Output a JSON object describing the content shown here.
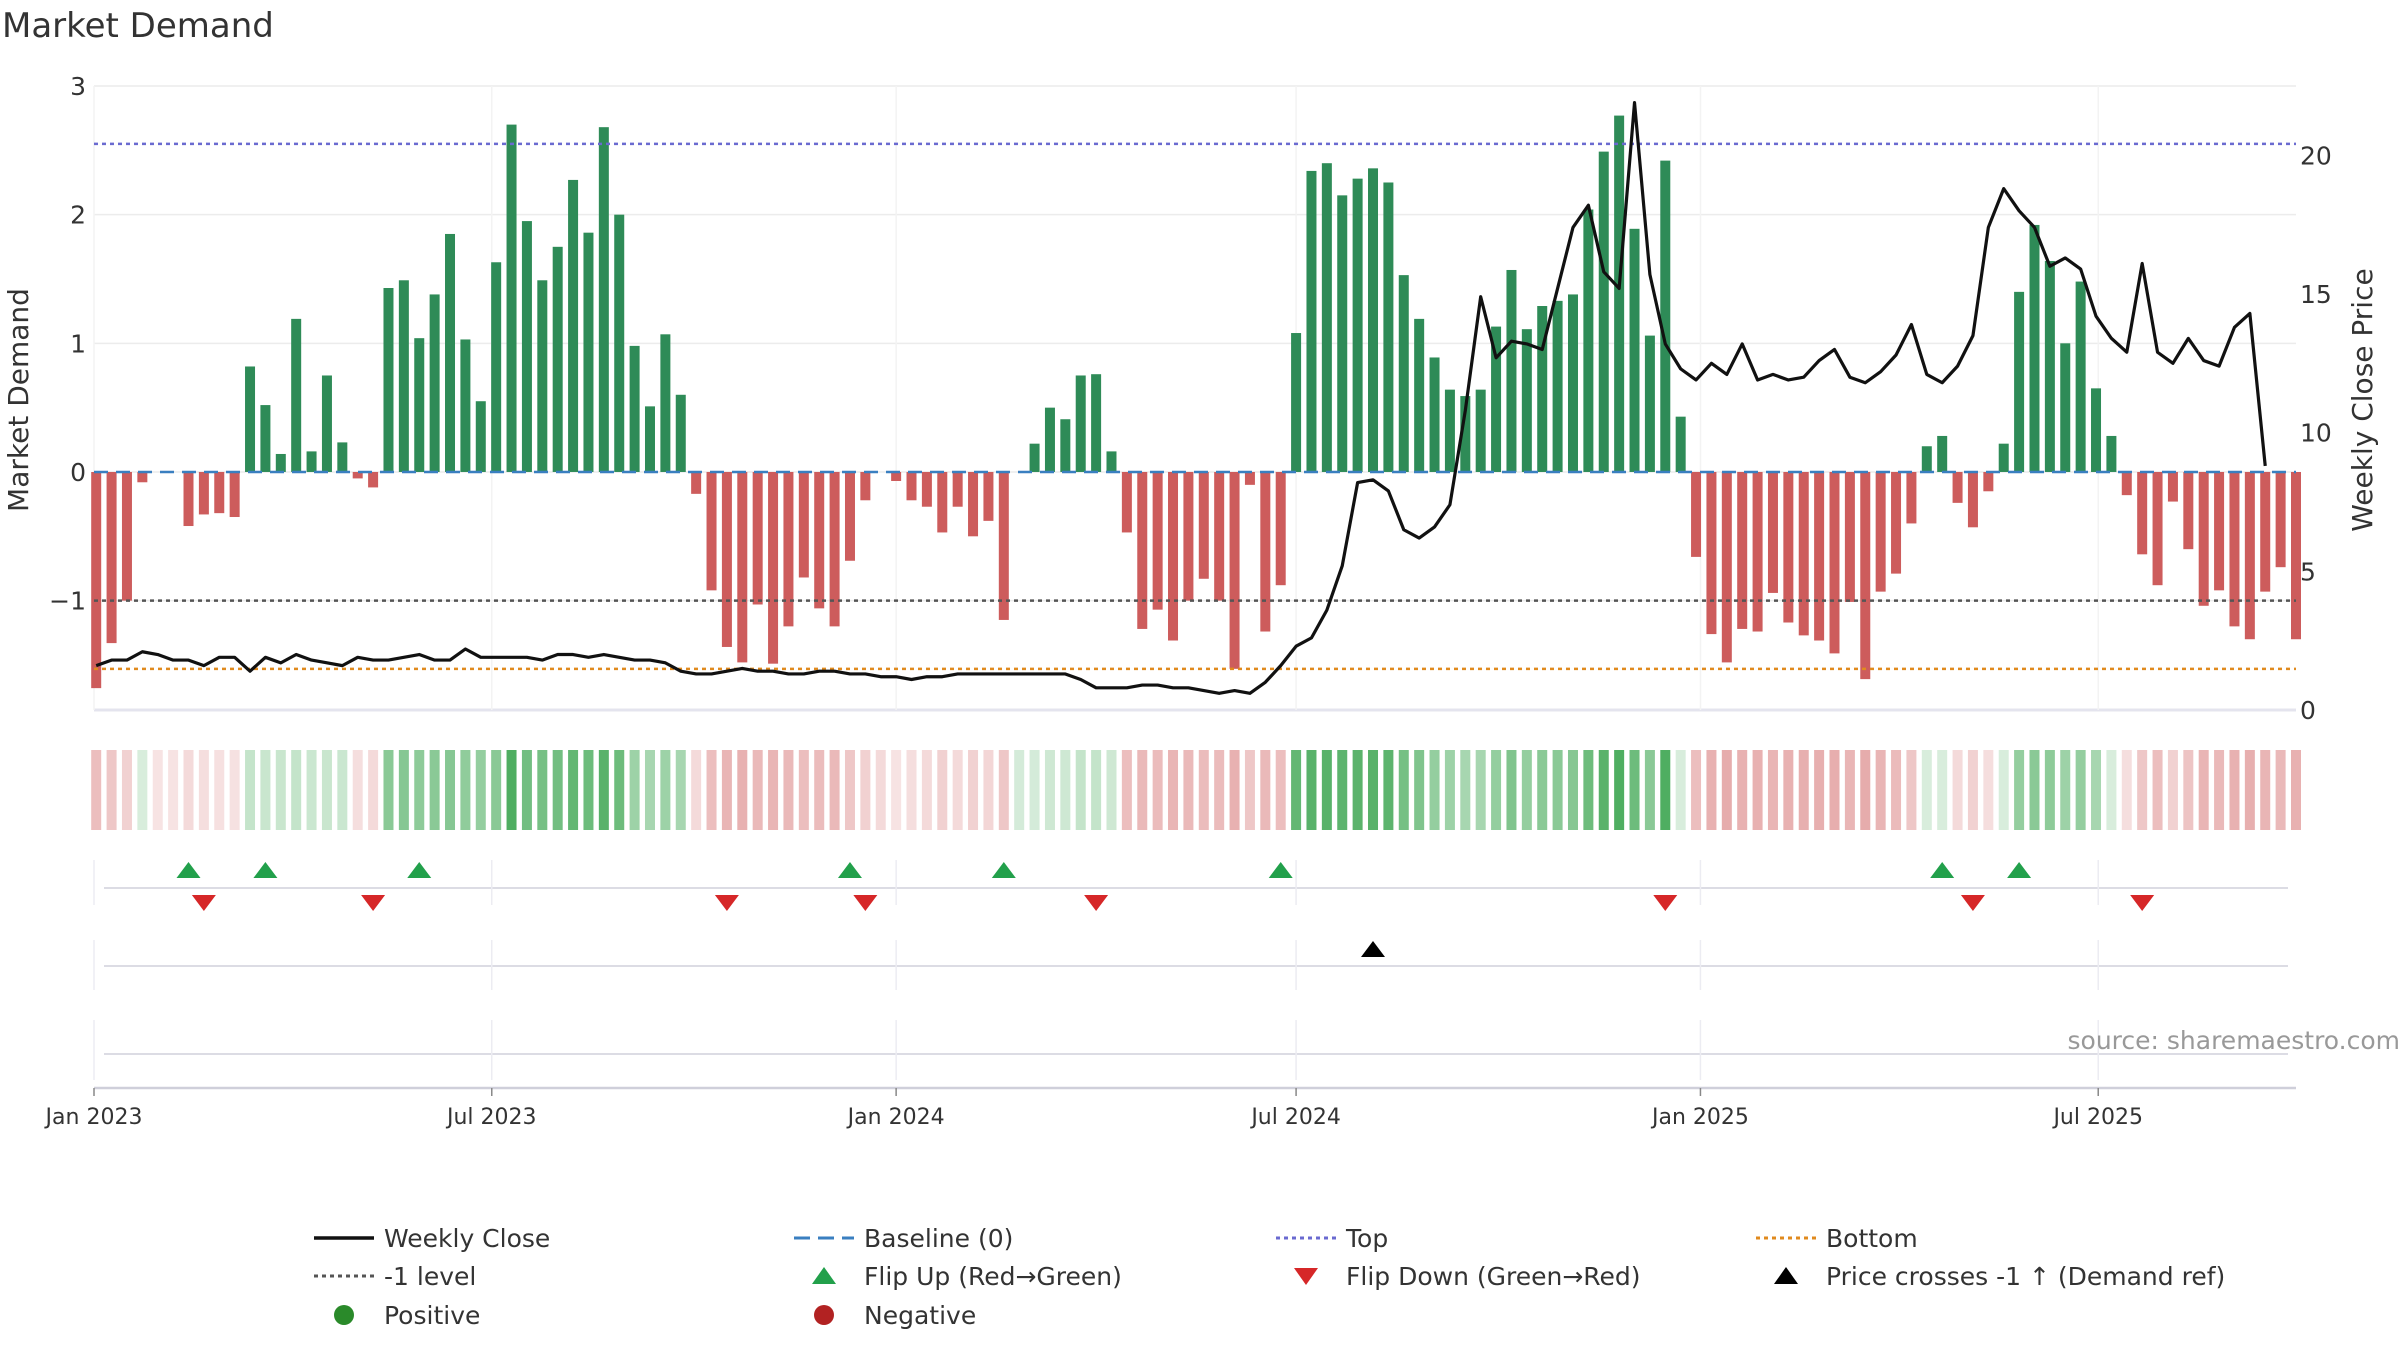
{
  "chart_data": {
    "type": "bar",
    "title": "Market Demand",
    "ylabel": "Market Demand",
    "y2label": "Weekly Close Price",
    "ylim": [
      -1.85,
      3.0
    ],
    "y2lim": [
      0,
      22.5
    ],
    "yticks": [
      3,
      2,
      1,
      0,
      -1
    ],
    "ytick_labels": [
      "3",
      "2",
      "1",
      "0",
      "−1"
    ],
    "y2ticks": [
      20,
      15,
      10,
      5,
      0
    ],
    "x_start": "2023-01-01",
    "x_end": "2025-09-29",
    "x_tick_dates": [
      "2023-01-01",
      "2023-07-01",
      "2024-01-01",
      "2024-07-01",
      "2025-01-01",
      "2025-07-01"
    ],
    "x_tick_labels": [
      "Jan 2023",
      "Jul 2023",
      "Jan 2024",
      "Jul 2024",
      "Jan 2025",
      "Jul 2025"
    ],
    "week_start": "2023-01-02",
    "reference_lines": {
      "top": 2.55,
      "minus_one": -1.0,
      "bottom": -1.53,
      "baseline": 0
    },
    "demand": [
      -1.68,
      -1.33,
      -1.0,
      -0.08,
      0,
      0,
      -0.42,
      -0.33,
      -0.32,
      -0.35,
      0.82,
      0.52,
      0.14,
      1.19,
      0.16,
      0.75,
      0.23,
      -0.05,
      -0.12,
      1.43,
      1.49,
      1.04,
      1.38,
      1.85,
      1.03,
      0.55,
      1.63,
      2.7,
      1.95,
      1.49,
      1.75,
      2.27,
      1.86,
      2.68,
      2.0,
      0.98,
      0.51,
      1.07,
      0.6,
      -0.17,
      -0.92,
      -1.36,
      -1.48,
      -1.03,
      -1.49,
      -1.2,
      -0.82,
      -1.06,
      -1.2,
      -0.69,
      -0.22,
      0,
      -0.07,
      -0.22,
      -0.27,
      -0.47,
      -0.27,
      -0.5,
      -0.38,
      -1.15,
      0,
      0.22,
      0.5,
      0.41,
      0.75,
      0.76,
      0.16,
      -0.47,
      -1.22,
      -1.07,
      -1.31,
      -1.0,
      -0.83,
      -1.0,
      -1.53,
      -0.1,
      -1.24,
      -0.88,
      1.08,
      2.34,
      2.4,
      2.15,
      2.28,
      2.36,
      2.25,
      1.53,
      1.19,
      0.89,
      0.64,
      0.59,
      0.64,
      1.13,
      1.57,
      1.11,
      1.29,
      1.33,
      1.38,
      2.04,
      2.49,
      2.77,
      1.89,
      1.06,
      2.42,
      0.43,
      -0.66,
      -1.26,
      -1.48,
      -1.22,
      -1.24,
      -0.94,
      -1.17,
      -1.27,
      -1.31,
      -1.41,
      -1.01,
      -1.61,
      -0.93,
      -0.79,
      -0.4,
      0.2,
      0.28,
      -0.24,
      -0.43,
      -0.15,
      0.22,
      1.4,
      1.92,
      1.64,
      1.0,
      1.48,
      0.65,
      0.28,
      -0.18,
      -0.64,
      -0.88,
      -0.23,
      -0.6,
      -1.04,
      -0.92,
      -1.2,
      -1.3,
      -0.93,
      -0.74,
      -1.3
    ],
    "weekly_close": [
      1.6,
      1.8,
      1.8,
      2.1,
      2.0,
      1.8,
      1.8,
      1.6,
      1.9,
      1.9,
      1.4,
      1.9,
      1.7,
      2.0,
      1.8,
      1.7,
      1.6,
      1.9,
      1.8,
      1.8,
      1.9,
      2.0,
      1.8,
      1.8,
      2.2,
      1.9,
      1.9,
      1.9,
      1.9,
      1.8,
      2.0,
      2.0,
      1.9,
      2.0,
      1.9,
      1.8,
      1.8,
      1.7,
      1.4,
      1.3,
      1.3,
      1.4,
      1.5,
      1.4,
      1.4,
      1.3,
      1.3,
      1.4,
      1.4,
      1.3,
      1.3,
      1.2,
      1.2,
      1.1,
      1.2,
      1.2,
      1.3,
      1.3,
      1.3,
      1.3,
      1.3,
      1.3,
      1.3,
      1.3,
      1.1,
      0.8,
      0.8,
      0.8,
      0.9,
      0.9,
      0.8,
      0.8,
      0.7,
      0.6,
      0.7,
      0.6,
      1.0,
      1.6,
      2.3,
      2.6,
      3.6,
      5.2,
      8.2,
      8.3,
      7.9,
      6.5,
      6.2,
      6.6,
      7.4,
      10.8,
      14.9,
      12.7,
      13.3,
      13.2,
      13.0,
      15.2,
      17.4,
      18.2,
      15.8,
      15.2,
      21.9,
      15.7,
      13.2,
      12.3,
      11.9,
      12.5,
      12.1,
      13.2,
      11.9,
      12.1,
      11.9,
      12.0,
      12.6,
      13.0,
      12.0,
      11.8,
      12.2,
      12.8,
      13.9,
      12.1,
      11.8,
      12.4,
      13.5,
      17.4,
      18.8,
      18.0,
      17.4,
      16.0,
      16.3,
      15.9,
      14.2,
      13.4,
      12.9,
      16.1,
      12.9,
      12.5,
      13.4,
      12.6,
      12.4,
      13.8,
      14.3,
      8.8
    ],
    "strip_values": [
      -0.35,
      -0.3,
      -0.25,
      0.2,
      -0.15,
      -0.12,
      -0.2,
      -0.18,
      -0.17,
      -0.16,
      0.3,
      0.28,
      0.28,
      0.3,
      0.27,
      0.28,
      0.27,
      -0.18,
      -0.2,
      0.6,
      0.62,
      0.58,
      0.6,
      0.62,
      0.57,
      0.55,
      0.6,
      0.9,
      0.72,
      0.7,
      0.72,
      0.8,
      0.75,
      0.85,
      0.75,
      0.5,
      0.45,
      0.5,
      0.45,
      -0.2,
      -0.35,
      -0.4,
      -0.42,
      -0.38,
      -0.4,
      -0.38,
      -0.35,
      -0.36,
      -0.38,
      -0.3,
      -0.25,
      -0.2,
      -0.12,
      -0.18,
      -0.2,
      -0.25,
      -0.2,
      -0.25,
      -0.22,
      -0.3,
      0.22,
      0.22,
      0.25,
      0.25,
      0.3,
      0.3,
      0.25,
      -0.35,
      -0.38,
      -0.36,
      -0.4,
      -0.38,
      -0.36,
      -0.37,
      -0.42,
      -0.3,
      -0.38,
      -0.35,
      0.8,
      0.85,
      0.85,
      0.83,
      0.84,
      0.85,
      0.83,
      0.7,
      0.65,
      0.55,
      0.5,
      0.45,
      0.45,
      0.55,
      0.65,
      0.55,
      0.6,
      0.6,
      0.62,
      0.75,
      0.85,
      0.9,
      0.75,
      0.6,
      0.9,
      0.2,
      -0.35,
      -0.42,
      -0.45,
      -0.42,
      -0.42,
      -0.4,
      -0.42,
      -0.43,
      -0.43,
      -0.44,
      -0.4,
      -0.45,
      -0.4,
      -0.37,
      -0.3,
      0.2,
      0.2,
      -0.2,
      -0.25,
      -0.18,
      0.2,
      0.55,
      0.6,
      0.58,
      0.5,
      0.55,
      0.45,
      0.2,
      -0.18,
      -0.3,
      -0.35,
      -0.25,
      -0.32,
      -0.4,
      -0.38,
      -0.42,
      -0.43,
      -0.4,
      -0.38,
      -0.42
    ],
    "flip_up_dates": [
      "2023-02-13",
      "2023-03-20",
      "2023-05-29",
      "2023-12-11",
      "2024-02-19",
      "2024-06-24",
      "2025-04-21",
      "2025-05-26"
    ],
    "flip_down_dates": [
      "2023-02-20",
      "2023-05-08",
      "2023-10-16",
      "2023-12-18",
      "2024-04-01",
      "2024-12-16",
      "2025-05-05",
      "2025-07-21"
    ],
    "price_cross_dates": [
      "2024-08-05"
    ],
    "source": "source: sharemaestro.com",
    "legend_position": "bottom",
    "legend": [
      {
        "label": "Weekly Close",
        "kind": "line",
        "color": "#111111"
      },
      {
        "label": "Baseline (0)",
        "kind": "dash",
        "color": "#3a7fc0"
      },
      {
        "label": "Top",
        "kind": "dot",
        "color": "#6a6ad0"
      },
      {
        "label": "Bottom",
        "kind": "dot",
        "color": "#e08a1e"
      },
      {
        "label": "-1 level",
        "kind": "dot",
        "color": "#555555"
      },
      {
        "label": "Flip Up (Red→Green)",
        "kind": "tri-up",
        "color": "#22a04b"
      },
      {
        "label": "Flip Down (Green→Red)",
        "kind": "tri-down",
        "color": "#d62728"
      },
      {
        "label": "Price crosses -1 ↑ (Demand ref)",
        "kind": "tri-up",
        "color": "#000000"
      },
      {
        "label": "Positive",
        "kind": "circle",
        "color": "#2a8a2a"
      },
      {
        "label": "Negative",
        "kind": "circle",
        "color": "#b22222"
      }
    ]
  },
  "colors": {
    "positive_bar": "#2e8b57",
    "negative_bar": "#cd5c5c",
    "line": "#111111",
    "grid": "#ececec"
  }
}
